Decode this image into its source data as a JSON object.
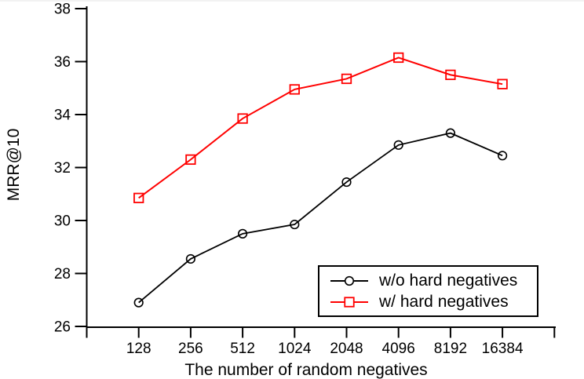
{
  "figure": {
    "background": "#ffffff",
    "top_edge_color": "#f2f2f2",
    "axis_color": "#000000",
    "text_color": "#000000"
  },
  "chart_data": {
    "type": "line",
    "title": "",
    "xlabel": "The number of random negatives",
    "ylabel": "MRR@10",
    "categories": [
      "128",
      "256",
      "512",
      "1024",
      "2048",
      "4096",
      "8192",
      "16384"
    ],
    "x_scale": "log2-spaced categories with one unlabeled end tick",
    "ylim": [
      26,
      38
    ],
    "yticks": [
      26,
      28,
      30,
      32,
      34,
      36,
      38
    ],
    "grid": false,
    "legend_position": "inside bottom-right",
    "series": [
      {
        "name": "w/o hard negatives",
        "color": "#000000",
        "marker": "circle",
        "values": [
          26.9,
          28.55,
          29.5,
          29.85,
          31.45,
          32.85,
          33.3,
          32.45
        ]
      },
      {
        "name": "w/ hard negatives",
        "color": "#ff0000",
        "marker": "square",
        "values": [
          30.85,
          32.3,
          33.85,
          34.95,
          35.35,
          36.15,
          35.5,
          35.15
        ]
      }
    ]
  }
}
